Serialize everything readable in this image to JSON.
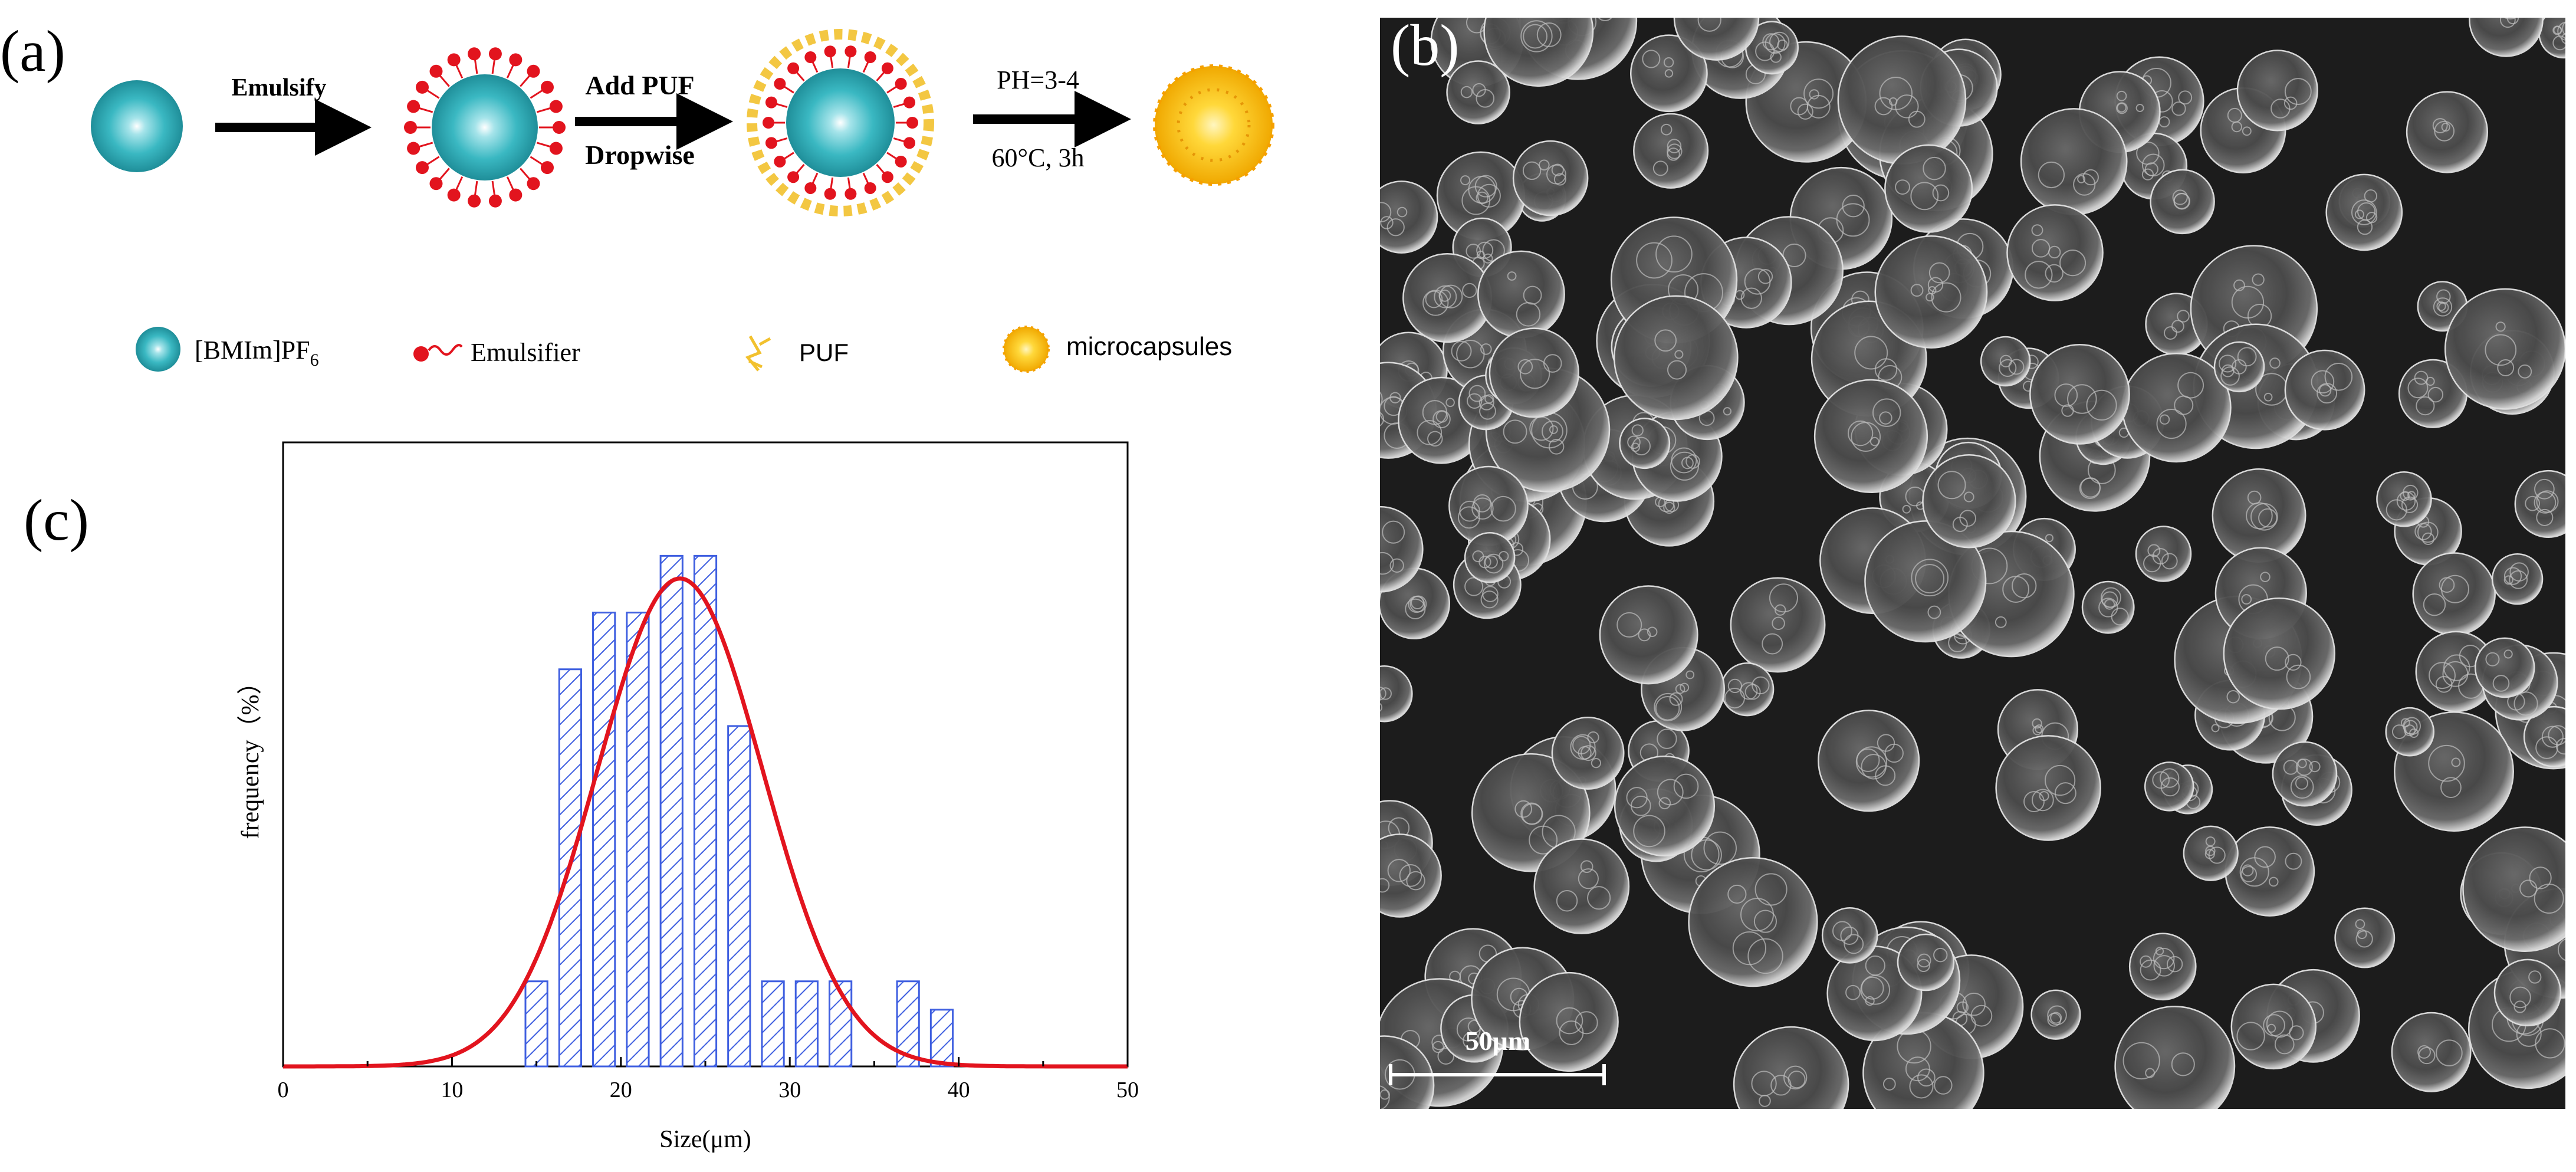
{
  "panel_a": {
    "label": "(a)",
    "steps": [
      {
        "label": "Emulsify",
        "label2": ""
      },
      {
        "label": "Add PUF",
        "label2": "Dropwise"
      },
      {
        "label": "PH=3-4",
        "label2": "60°C, 3h"
      }
    ],
    "legend": [
      {
        "icon": "il-droplet-icon",
        "text": "[BMIm]PF",
        "sub": "6"
      },
      {
        "icon": "emulsifier-icon",
        "text": "Emulsifier",
        "sub": ""
      },
      {
        "icon": "puf-icon",
        "text": "PUF",
        "sub": ""
      },
      {
        "icon": "microcapsule-icon",
        "text": "microcapsules",
        "sub": ""
      }
    ],
    "colors": {
      "droplet": "#3ab8c2",
      "emulsifier": "#e2141e",
      "puf": "#f2c12e",
      "capsule": "#f5b800"
    }
  },
  "panel_b": {
    "label": "(b)",
    "image": "SEM micrograph of microcapsules",
    "scale_bar": "50μm"
  },
  "panel_c": {
    "label": "(c)"
  },
  "chart_data": {
    "type": "bar",
    "xlabel": "Size(μm)",
    "ylabel": "frequency（%）",
    "xlim": [
      0,
      50
    ],
    "ylim": [
      0,
      11
    ],
    "xticks": [
      0,
      10,
      20,
      30,
      40,
      50
    ],
    "bins": [
      {
        "x": 15,
        "value": 1.5
      },
      {
        "x": 17,
        "value": 7
      },
      {
        "x": 19,
        "value": 8
      },
      {
        "x": 21,
        "value": 8
      },
      {
        "x": 23,
        "value": 9
      },
      {
        "x": 25,
        "value": 9
      },
      {
        "x": 27,
        "value": 6
      },
      {
        "x": 29,
        "value": 1.5
      },
      {
        "x": 31,
        "value": 1.5
      },
      {
        "x": 33,
        "value": 1.5
      },
      {
        "x": 37,
        "value": 1.5
      },
      {
        "x": 39,
        "value": 1
      }
    ],
    "bin_width": 1.3,
    "fit": {
      "type": "gaussian",
      "mean": 23.5,
      "sd": 4.9,
      "peak": 8.6
    },
    "colors": {
      "bars": "#3f5fe0",
      "fit": "#e2141e"
    },
    "grid": false
  }
}
